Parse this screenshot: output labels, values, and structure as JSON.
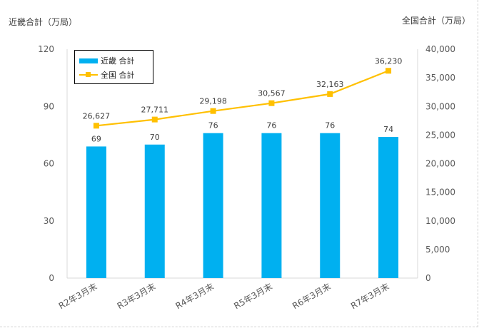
{
  "chart_data": {
    "type": "bar+line",
    "categories": [
      "R2年3月末",
      "R3年3月末",
      "R4年3月末",
      "R5年3月末",
      "R6年3月末",
      "R7年3月末"
    ],
    "series": [
      {
        "name": "近畿 合計",
        "type": "bar",
        "axis": "left",
        "color": "#00b0f0",
        "values": [
          69,
          70,
          76,
          76,
          76,
          74
        ]
      },
      {
        "name": "全国 合計",
        "type": "line",
        "axis": "right",
        "color": "#ffc000",
        "values": [
          26627,
          27711,
          29198,
          30567,
          32163,
          36230
        ],
        "labels": [
          "26,627",
          "27,711",
          "29,198",
          "30,567",
          "32,163",
          "36,230"
        ]
      }
    ],
    "y_left": {
      "label": "近畿合計（万局）",
      "range": [
        0,
        120
      ],
      "ticks": [
        "0",
        "30",
        "60",
        "90",
        "120"
      ]
    },
    "y_right": {
      "label": "全国合計（万局）",
      "range": [
        0,
        40000
      ],
      "ticks": [
        "0",
        "5,000",
        "10,000",
        "15,000",
        "20,000",
        "25,000",
        "30,000",
        "35,000",
        "40,000"
      ]
    },
    "grid": false,
    "legend": "top-left"
  }
}
